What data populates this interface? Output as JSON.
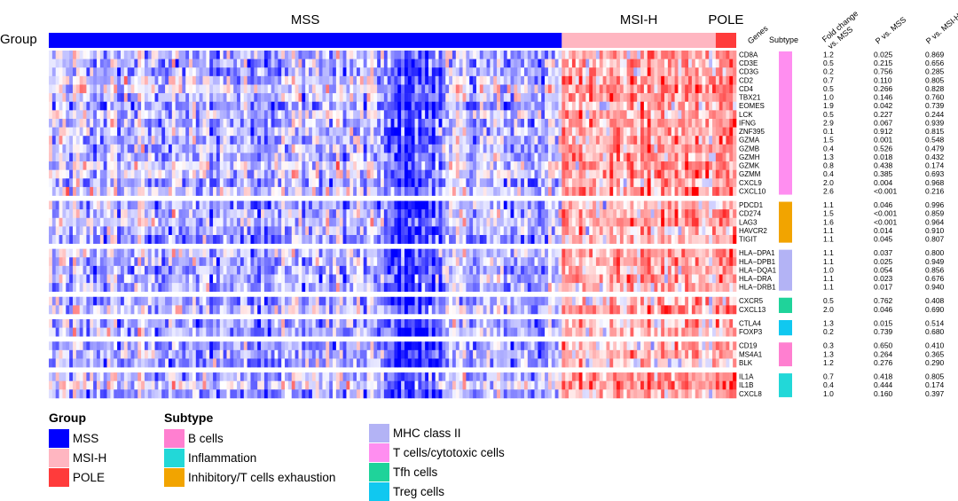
{
  "chart_data": {
    "type": "heatmap",
    "row_label": "Group",
    "color_scale": {
      "low": "#0000ff",
      "mid": "#ffffff",
      "high": "#ff0000"
    },
    "columns": {
      "groups": [
        {
          "name": "MSS",
          "count": 150,
          "color": "#0000ff"
        },
        {
          "name": "MSI-H",
          "count": 45,
          "color": "#ffb6c1"
        },
        {
          "name": "POLE",
          "count": 6,
          "color": "#ff3b3b"
        }
      ]
    },
    "table_headers": {
      "genes": "Genes",
      "subtype": "Subtype",
      "fold_change": [
        "Fold change",
        "vs. MSS"
      ],
      "p_mss": "P vs. MSS",
      "p_msih": "P vs. MSI-H"
    },
    "subtypes": [
      {
        "name": "B cells",
        "color": "#ff7fd0"
      },
      {
        "name": "Inflammation",
        "color": "#22d8d8"
      },
      {
        "name": "Inhibitory/T cells exhaustion",
        "color": "#f2a400"
      },
      {
        "name": "MHC class II",
        "color": "#b3b3f5"
      },
      {
        "name": "T cells/cytotoxic cells",
        "color": "#ff8ef0"
      },
      {
        "name": "Tfh cells",
        "color": "#1fd39a"
      },
      {
        "name": "Treg cells",
        "color": "#10c8f0"
      }
    ],
    "gene_blocks": [
      {
        "subtype": "T cells/cytotoxic cells",
        "genes": [
          {
            "gene": "CD8A",
            "fc": "1.2",
            "p_mss": "0.025",
            "p_msih": "0.869"
          },
          {
            "gene": "CD3E",
            "fc": "0.5",
            "p_mss": "0.215",
            "p_msih": "0.656"
          },
          {
            "gene": "CD3G",
            "fc": "0.2",
            "p_mss": "0.756",
            "p_msih": "0.285"
          },
          {
            "gene": "CD2",
            "fc": "0.7",
            "p_mss": "0.110",
            "p_msih": "0.805"
          },
          {
            "gene": "CD4",
            "fc": "0.5",
            "p_mss": "0.266",
            "p_msih": "0.828"
          },
          {
            "gene": "TBX21",
            "fc": "1.0",
            "p_mss": "0.146",
            "p_msih": "0.760"
          },
          {
            "gene": "EOMES",
            "fc": "1.9",
            "p_mss": "0.042",
            "p_msih": "0.739"
          },
          {
            "gene": "LCK",
            "fc": "0.5",
            "p_mss": "0.227",
            "p_msih": "0.244"
          },
          {
            "gene": "IFNG",
            "fc": "2.9",
            "p_mss": "0.067",
            "p_msih": "0.939"
          },
          {
            "gene": "ZNF395",
            "fc": "0.1",
            "p_mss": "0.912",
            "p_msih": "0.815"
          },
          {
            "gene": "GZMA",
            "fc": "1.5",
            "p_mss": "0.001",
            "p_msih": "0.548"
          },
          {
            "gene": "GZMB",
            "fc": "0.4",
            "p_mss": "0.526",
            "p_msih": "0.479"
          },
          {
            "gene": "GZMH",
            "fc": "1.3",
            "p_mss": "0.018",
            "p_msih": "0.432"
          },
          {
            "gene": "GZMK",
            "fc": "0.8",
            "p_mss": "0.438",
            "p_msih": "0.174"
          },
          {
            "gene": "GZMM",
            "fc": "0.4",
            "p_mss": "0.385",
            "p_msih": "0.693"
          },
          {
            "gene": "CXCL9",
            "fc": "2.0",
            "p_mss": "0.004",
            "p_msih": "0.968"
          },
          {
            "gene": "CXCL10",
            "fc": "2.6",
            "p_mss": "<0.001",
            "p_msih": "0.216"
          }
        ]
      },
      {
        "subtype": "Inhibitory/T cells exhaustion",
        "genes": [
          {
            "gene": "PDCD1",
            "fc": "1.1",
            "p_mss": "0.046",
            "p_msih": "0.996"
          },
          {
            "gene": "CD274",
            "fc": "1.5",
            "p_mss": "<0.001",
            "p_msih": "0.859"
          },
          {
            "gene": "LAG3",
            "fc": "1.6",
            "p_mss": "<0.001",
            "p_msih": "0.964"
          },
          {
            "gene": "HAVCR2",
            "fc": "1.1",
            "p_mss": "0.014",
            "p_msih": "0.910"
          },
          {
            "gene": "TIGIT",
            "fc": "1.1",
            "p_mss": "0.045",
            "p_msih": "0.807"
          }
        ]
      },
      {
        "subtype": "MHC class II",
        "genes": [
          {
            "gene": "HLA−DPA1",
            "fc": "1.1",
            "p_mss": "0.037",
            "p_msih": "0.800"
          },
          {
            "gene": "HLA−DPB1",
            "fc": "1.1",
            "p_mss": "0.025",
            "p_msih": "0.949"
          },
          {
            "gene": "HLA−DQA1",
            "fc": "1.0",
            "p_mss": "0.054",
            "p_msih": "0.856"
          },
          {
            "gene": "HLA−DRA",
            "fc": "1.1",
            "p_mss": "0.023",
            "p_msih": "0.676"
          },
          {
            "gene": "HLA−DRB1",
            "fc": "1.1",
            "p_mss": "0.017",
            "p_msih": "0.940"
          }
        ]
      },
      {
        "subtype": "Tfh cells",
        "genes": [
          {
            "gene": "CXCR5",
            "fc": "0.5",
            "p_mss": "0.762",
            "p_msih": "0.408"
          },
          {
            "gene": "CXCL13",
            "fc": "2.0",
            "p_mss": "0.046",
            "p_msih": "0.690"
          }
        ]
      },
      {
        "subtype": "Treg cells",
        "genes": [
          {
            "gene": "CTLA4",
            "fc": "1.3",
            "p_mss": "0.015",
            "p_msih": "0.514"
          },
          {
            "gene": "FOXP3",
            "fc": "0.2",
            "p_mss": "0.739",
            "p_msih": "0.680"
          }
        ]
      },
      {
        "subtype": "B cells",
        "genes": [
          {
            "gene": "CD19",
            "fc": "0.3",
            "p_mss": "0.650",
            "p_msih": "0.410"
          },
          {
            "gene": "MS4A1",
            "fc": "1.3",
            "p_mss": "0.264",
            "p_msih": "0.365"
          },
          {
            "gene": "BLK",
            "fc": "1.2",
            "p_mss": "0.276",
            "p_msih": "0.290"
          }
        ]
      },
      {
        "subtype": "Inflammation",
        "genes": [
          {
            "gene": "IL1A",
            "fc": "0.7",
            "p_mss": "0.418",
            "p_msih": "0.805"
          },
          {
            "gene": "IL1B",
            "fc": "0.4",
            "p_mss": "0.444",
            "p_msih": "0.174"
          },
          {
            "gene": "CXCL8",
            "fc": "1.0",
            "p_mss": "0.160",
            "p_msih": "0.397"
          }
        ]
      }
    ],
    "legend": {
      "group_title": "Group",
      "subtype_title": "Subtype"
    }
  }
}
